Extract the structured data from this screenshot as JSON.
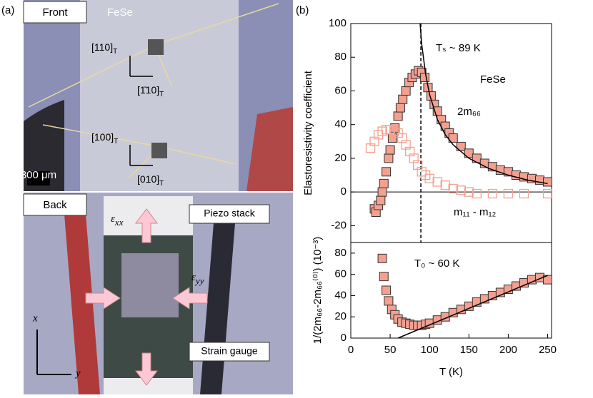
{
  "panel_a": {
    "label": "(a)",
    "front": {
      "label": "Front",
      "material": "FeSe",
      "scale_bar": "300 μm",
      "dir1": {
        "text": "[110]",
        "sub": "T"
      },
      "dir2": {
        "text": "[1̄10]",
        "sub": "T"
      },
      "dir3": {
        "text": "[100]",
        "sub": "T"
      },
      "dir4": {
        "text": "[010]",
        "sub": "T"
      }
    },
    "back": {
      "label": "Back",
      "piezo": "Piezo stack",
      "gauge": "Strain gauge",
      "exx": {
        "text": "ε",
        "sub": "xx"
      },
      "eyy": {
        "text": "ε",
        "sub": "yy"
      },
      "axis_x": "x",
      "axis_y": "y"
    }
  },
  "panel_b_label": "(b)",
  "chart_data": [
    {
      "type": "scatter",
      "y_label": "Elastoresistivity coefficient",
      "annotations": [
        "Tₛ ~ 89 K",
        "FeSe",
        "2m₆₆",
        "m₁₁ - m₁₂"
      ],
      "xlim": [
        0,
        255
      ],
      "ylim": [
        -30,
        100
      ],
      "yticks": [
        -20,
        0,
        20,
        40,
        60,
        80,
        100
      ],
      "vline_x": 89,
      "series": [
        {
          "color": "#f4a090",
          "marker": "filled",
          "x": [
            30,
            32,
            35,
            38,
            40,
            42,
            45,
            48,
            50,
            53,
            56,
            60,
            63,
            66,
            70,
            74,
            78,
            82,
            86,
            90,
            94,
            98,
            102,
            106,
            110,
            115,
            120,
            125,
            130,
            140,
            150,
            160,
            170,
            180,
            190,
            200,
            210,
            220,
            230,
            240,
            250
          ],
          "values": [
            -10,
            -12,
            -8,
            -5,
            0,
            5,
            12,
            20,
            25,
            32,
            38,
            45,
            50,
            55,
            60,
            65,
            68,
            70,
            72,
            71,
            68,
            62,
            57,
            52,
            48,
            43,
            39,
            35,
            32,
            27,
            23,
            20,
            17,
            15,
            13,
            12,
            10,
            9,
            8,
            7,
            6
          ]
        },
        {
          "color": "#f4a090",
          "marker": "open",
          "x": [
            25,
            30,
            35,
            40,
            45,
            50,
            55,
            60,
            65,
            70,
            75,
            80,
            85,
            90,
            95,
            100,
            110,
            120,
            130,
            140,
            150,
            160,
            180,
            200,
            220,
            250
          ],
          "values": [
            26,
            30,
            34,
            36,
            37,
            37,
            36,
            35,
            32,
            28,
            24,
            20,
            16,
            12,
            10,
            8,
            6,
            4,
            2,
            1,
            0,
            -1,
            -1,
            -1,
            -1,
            -1
          ]
        },
        {
          "color": "#000000",
          "marker": "line",
          "x": [
            88,
            90,
            95,
            100,
            110,
            120,
            130,
            150,
            175,
            200,
            225,
            250
          ],
          "values": [
            100,
            88,
            70,
            58,
            43,
            34,
            28,
            20,
            14,
            10,
            7,
            5
          ]
        }
      ]
    },
    {
      "type": "scatter",
      "y_label": "1/(2m₆₆-2m₆₆⁽⁰⁾) (10⁻³)",
      "x_label": "T (K)",
      "annotations": [
        "T₀ ~ 60 K"
      ],
      "xlim": [
        0,
        255
      ],
      "ylim": [
        0,
        90
      ],
      "xticks": [
        0,
        50,
        100,
        150,
        200,
        250
      ],
      "yticks": [
        0,
        20,
        40,
        60,
        80
      ],
      "series": [
        {
          "color": "#f4a090",
          "marker": "filled",
          "x": [
            40,
            42,
            45,
            48,
            52,
            56,
            60,
            65,
            70,
            75,
            80,
            85,
            90,
            95,
            100,
            110,
            120,
            130,
            140,
            150,
            160,
            170,
            180,
            190,
            200,
            210,
            220,
            230,
            240,
            250
          ],
          "values": [
            75,
            58,
            45,
            35,
            27,
            22,
            18,
            15,
            14,
            13,
            12,
            12,
            12,
            13,
            14,
            17,
            20,
            24,
            27,
            30,
            34,
            37,
            40,
            43,
            46,
            49,
            52,
            55,
            57,
            55
          ]
        },
        {
          "color": "#000000",
          "marker": "line",
          "x": [
            60,
            250
          ],
          "values": [
            0,
            59
          ]
        }
      ]
    }
  ]
}
